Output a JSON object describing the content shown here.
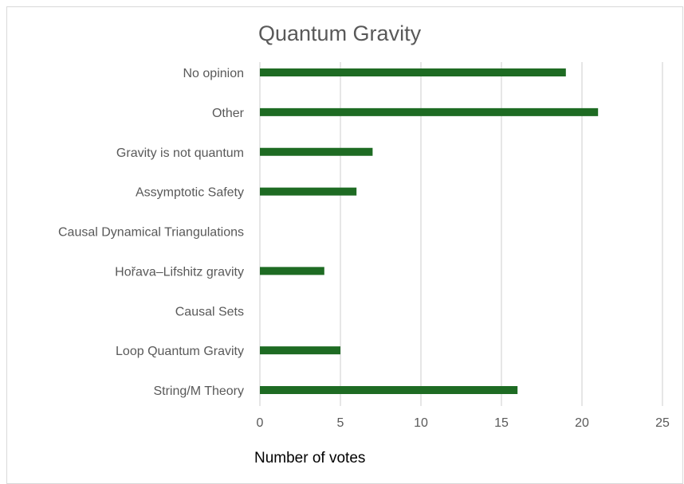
{
  "chart_data": {
    "type": "bar",
    "orientation": "horizontal",
    "title": "Quantum Gravity",
    "xlabel": "Number of votes",
    "ylabel": "",
    "categories": [
      "No opinion",
      "Other",
      "Gravity is not quantum",
      "Assymptotic Safety",
      "Causal Dynamical Triangulations",
      "Hořava–Lifshitz gravity",
      "Causal Sets",
      "Loop Quantum Gravity",
      "String/M Theory"
    ],
    "values": [
      19,
      21,
      7,
      6,
      0,
      4,
      0,
      5,
      16
    ],
    "xlim": [
      0,
      25
    ],
    "xticks": [
      "0",
      "5",
      "10",
      "15",
      "20",
      "25"
    ],
    "grid": "vertical",
    "legend": "none",
    "bar_color": "#1e6b23",
    "grid_color": "#d9d9d9"
  }
}
